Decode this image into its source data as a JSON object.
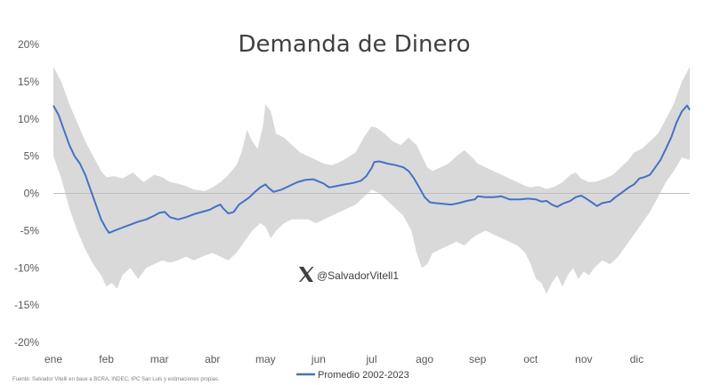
{
  "chart_data": {
    "type": "area",
    "title": "Demanda de Dinero",
    "x_ticks": [
      "ene",
      "feb",
      "mar",
      "abr",
      "may",
      "jun",
      "jul",
      "ago",
      "sep",
      "oct",
      "nov",
      "dic"
    ],
    "y_ticks": [
      "20%",
      "15%",
      "10%",
      "5%",
      "0%",
      "-5%",
      "-10%",
      "-15%",
      "-20%"
    ],
    "y_tick_values": [
      20,
      15,
      10,
      5,
      0,
      -5,
      -10,
      -15,
      -20
    ],
    "ylim": [
      -20,
      20
    ],
    "xlim": [
      0,
      12
    ],
    "grid": false,
    "legend_position": "bottom",
    "series": [
      {
        "name": "Promedio 2002-2023",
        "color": "#4472c4",
        "points": [
          [
            0.0,
            11.8
          ],
          [
            0.1,
            10.5
          ],
          [
            0.2,
            8.5
          ],
          [
            0.3,
            6.5
          ],
          [
            0.4,
            5.0
          ],
          [
            0.5,
            4.0
          ],
          [
            0.6,
            2.5
          ],
          [
            0.7,
            0.5
          ],
          [
            0.8,
            -1.5
          ],
          [
            0.9,
            -3.5
          ],
          [
            1.0,
            -4.8
          ],
          [
            1.05,
            -5.3
          ],
          [
            1.15,
            -5.0
          ],
          [
            1.3,
            -4.6
          ],
          [
            1.45,
            -4.2
          ],
          [
            1.6,
            -3.8
          ],
          [
            1.75,
            -3.5
          ],
          [
            1.9,
            -3.0
          ],
          [
            2.0,
            -2.6
          ],
          [
            2.1,
            -2.5
          ],
          [
            2.2,
            -3.2
          ],
          [
            2.35,
            -3.5
          ],
          [
            2.5,
            -3.2
          ],
          [
            2.65,
            -2.8
          ],
          [
            2.8,
            -2.5
          ],
          [
            2.95,
            -2.2
          ],
          [
            3.05,
            -1.8
          ],
          [
            3.15,
            -1.5
          ],
          [
            3.2,
            -2.0
          ],
          [
            3.3,
            -2.7
          ],
          [
            3.4,
            -2.5
          ],
          [
            3.5,
            -1.5
          ],
          [
            3.6,
            -1.0
          ],
          [
            3.7,
            -0.5
          ],
          [
            3.8,
            0.2
          ],
          [
            3.9,
            0.8
          ],
          [
            4.0,
            1.2
          ],
          [
            4.05,
            0.8
          ],
          [
            4.15,
            0.2
          ],
          [
            4.3,
            0.5
          ],
          [
            4.45,
            1.0
          ],
          [
            4.6,
            1.5
          ],
          [
            4.75,
            1.8
          ],
          [
            4.9,
            1.9
          ],
          [
            5.0,
            1.6
          ],
          [
            5.1,
            1.3
          ],
          [
            5.2,
            0.8
          ],
          [
            5.35,
            1.0
          ],
          [
            5.5,
            1.2
          ],
          [
            5.65,
            1.4
          ],
          [
            5.8,
            1.7
          ],
          [
            5.9,
            2.3
          ],
          [
            6.0,
            3.4
          ],
          [
            6.05,
            4.2
          ],
          [
            6.15,
            4.3
          ],
          [
            6.3,
            4.0
          ],
          [
            6.45,
            3.8
          ],
          [
            6.6,
            3.5
          ],
          [
            6.7,
            3.0
          ],
          [
            6.8,
            2.0
          ],
          [
            6.9,
            0.8
          ],
          [
            7.0,
            -0.5
          ],
          [
            7.1,
            -1.2
          ],
          [
            7.2,
            -1.3
          ],
          [
            7.35,
            -1.4
          ],
          [
            7.5,
            -1.5
          ],
          [
            7.65,
            -1.3
          ],
          [
            7.8,
            -1.0
          ],
          [
            7.95,
            -0.8
          ],
          [
            8.0,
            -0.4
          ],
          [
            8.15,
            -0.5
          ],
          [
            8.3,
            -0.5
          ],
          [
            8.45,
            -0.4
          ],
          [
            8.6,
            -0.8
          ],
          [
            8.8,
            -0.8
          ],
          [
            8.95,
            -0.7
          ],
          [
            9.1,
            -0.8
          ],
          [
            9.2,
            -1.1
          ],
          [
            9.3,
            -1.0
          ],
          [
            9.4,
            -1.5
          ],
          [
            9.5,
            -1.8
          ],
          [
            9.6,
            -1.4
          ],
          [
            9.75,
            -1.0
          ],
          [
            9.85,
            -0.5
          ],
          [
            9.95,
            -0.3
          ],
          [
            10.05,
            -0.7
          ],
          [
            10.15,
            -1.2
          ],
          [
            10.25,
            -1.7
          ],
          [
            10.35,
            -1.3
          ],
          [
            10.5,
            -1.1
          ],
          [
            10.6,
            -0.5
          ],
          [
            10.7,
            0.0
          ],
          [
            10.85,
            0.8
          ],
          [
            10.95,
            1.2
          ],
          [
            11.05,
            2.0
          ],
          [
            11.15,
            2.2
          ],
          [
            11.25,
            2.5
          ],
          [
            11.35,
            3.5
          ],
          [
            11.45,
            4.5
          ],
          [
            11.55,
            6.0
          ],
          [
            11.65,
            7.5
          ],
          [
            11.75,
            9.5
          ],
          [
            11.85,
            11.0
          ],
          [
            11.95,
            11.8
          ],
          [
            12.0,
            11.2
          ]
        ]
      }
    ],
    "band": {
      "color": "#d9d9d9",
      "upper": [
        [
          0.0,
          17.0
        ],
        [
          0.15,
          15.0
        ],
        [
          0.3,
          12.0
        ],
        [
          0.45,
          9.5
        ],
        [
          0.6,
          7.0
        ],
        [
          0.75,
          5.0
        ],
        [
          0.9,
          3.0
        ],
        [
          1.0,
          2.2
        ],
        [
          1.15,
          2.3
        ],
        [
          1.3,
          2.0
        ],
        [
          1.5,
          2.8
        ],
        [
          1.7,
          1.5
        ],
        [
          1.9,
          2.5
        ],
        [
          2.05,
          2.2
        ],
        [
          2.2,
          1.5
        ],
        [
          2.35,
          1.3
        ],
        [
          2.5,
          1.0
        ],
        [
          2.65,
          0.5
        ],
        [
          2.85,
          0.3
        ],
        [
          3.0,
          0.8
        ],
        [
          3.15,
          1.5
        ],
        [
          3.3,
          2.5
        ],
        [
          3.45,
          3.8
        ],
        [
          3.55,
          5.5
        ],
        [
          3.65,
          8.5
        ],
        [
          3.75,
          7.0
        ],
        [
          3.85,
          6.0
        ],
        [
          3.95,
          9.0
        ],
        [
          4.0,
          12.0
        ],
        [
          4.1,
          11.0
        ],
        [
          4.2,
          8.0
        ],
        [
          4.35,
          7.5
        ],
        [
          4.5,
          6.5
        ],
        [
          4.65,
          5.5
        ],
        [
          4.8,
          5.0
        ],
        [
          4.95,
          4.5
        ],
        [
          5.1,
          4.0
        ],
        [
          5.25,
          3.8
        ],
        [
          5.4,
          4.2
        ],
        [
          5.55,
          4.8
        ],
        [
          5.7,
          5.5
        ],
        [
          5.85,
          7.5
        ],
        [
          5.95,
          8.5
        ],
        [
          6.0,
          9.0
        ],
        [
          6.1,
          8.8
        ],
        [
          6.25,
          8.0
        ],
        [
          6.4,
          7.0
        ],
        [
          6.55,
          6.5
        ],
        [
          6.7,
          7.5
        ],
        [
          6.85,
          6.5
        ],
        [
          6.95,
          5.0
        ],
        [
          7.05,
          3.5
        ],
        [
          7.15,
          3.0
        ],
        [
          7.3,
          3.5
        ],
        [
          7.45,
          4.0
        ],
        [
          7.6,
          5.0
        ],
        [
          7.75,
          5.8
        ],
        [
          7.9,
          4.8
        ],
        [
          8.0,
          4.0
        ],
        [
          8.15,
          3.5
        ],
        [
          8.3,
          3.0
        ],
        [
          8.45,
          2.5
        ],
        [
          8.6,
          2.0
        ],
        [
          8.75,
          1.5
        ],
        [
          8.9,
          1.0
        ],
        [
          9.0,
          0.8
        ],
        [
          9.15,
          1.0
        ],
        [
          9.3,
          0.6
        ],
        [
          9.45,
          0.9
        ],
        [
          9.6,
          1.5
        ],
        [
          9.75,
          2.5
        ],
        [
          9.85,
          2.8
        ],
        [
          9.95,
          2.0
        ],
        [
          10.1,
          1.5
        ],
        [
          10.25,
          1.6
        ],
        [
          10.4,
          2.0
        ],
        [
          10.55,
          2.5
        ],
        [
          10.7,
          3.5
        ],
        [
          10.85,
          4.5
        ],
        [
          10.95,
          5.5
        ],
        [
          11.1,
          6.0
        ],
        [
          11.25,
          7.0
        ],
        [
          11.4,
          8.0
        ],
        [
          11.55,
          10.0
        ],
        [
          11.7,
          12.0
        ],
        [
          11.85,
          15.0
        ],
        [
          12.0,
          17.0
        ]
      ],
      "lower": [
        [
          0.0,
          5.0
        ],
        [
          0.15,
          2.0
        ],
        [
          0.3,
          -2.0
        ],
        [
          0.45,
          -5.0
        ],
        [
          0.6,
          -7.5
        ],
        [
          0.75,
          -9.5
        ],
        [
          0.9,
          -11.0
        ],
        [
          1.0,
          -12.5
        ],
        [
          1.1,
          -12.0
        ],
        [
          1.2,
          -12.8
        ],
        [
          1.3,
          -11.0
        ],
        [
          1.45,
          -10.0
        ],
        [
          1.6,
          -11.5
        ],
        [
          1.75,
          -10.0
        ],
        [
          1.9,
          -9.5
        ],
        [
          2.05,
          -9.0
        ],
        [
          2.2,
          -9.3
        ],
        [
          2.35,
          -9.0
        ],
        [
          2.5,
          -8.5
        ],
        [
          2.65,
          -9.0
        ],
        [
          2.8,
          -8.5
        ],
        [
          3.0,
          -8.0
        ],
        [
          3.15,
          -8.5
        ],
        [
          3.3,
          -9.0
        ],
        [
          3.45,
          -8.0
        ],
        [
          3.6,
          -6.5
        ],
        [
          3.75,
          -5.0
        ],
        [
          3.9,
          -4.0
        ],
        [
          4.0,
          -4.5
        ],
        [
          4.1,
          -6.0
        ],
        [
          4.2,
          -5.0
        ],
        [
          4.35,
          -4.0
        ],
        [
          4.5,
          -3.5
        ],
        [
          4.65,
          -3.5
        ],
        [
          4.8,
          -3.5
        ],
        [
          4.95,
          -4.0
        ],
        [
          5.1,
          -3.5
        ],
        [
          5.25,
          -3.0
        ],
        [
          5.4,
          -2.5
        ],
        [
          5.55,
          -2.0
        ],
        [
          5.7,
          -1.5
        ],
        [
          5.85,
          -0.5
        ],
        [
          6.0,
          0.5
        ],
        [
          6.15,
          0.0
        ],
        [
          6.3,
          -1.0
        ],
        [
          6.45,
          -2.0
        ],
        [
          6.6,
          -3.0
        ],
        [
          6.75,
          -5.0
        ],
        [
          6.85,
          -8.0
        ],
        [
          6.95,
          -10.0
        ],
        [
          7.05,
          -9.5
        ],
        [
          7.15,
          -8.0
        ],
        [
          7.3,
          -7.5
        ],
        [
          7.45,
          -7.0
        ],
        [
          7.6,
          -6.5
        ],
        [
          7.75,
          -7.0
        ],
        [
          7.9,
          -6.0
        ],
        [
          8.0,
          -5.5
        ],
        [
          8.15,
          -5.0
        ],
        [
          8.3,
          -5.5
        ],
        [
          8.45,
          -6.0
        ],
        [
          8.6,
          -6.5
        ],
        [
          8.75,
          -7.0
        ],
        [
          8.9,
          -8.0
        ],
        [
          9.0,
          -9.5
        ],
        [
          9.1,
          -11.5
        ],
        [
          9.2,
          -12.0
        ],
        [
          9.3,
          -13.5
        ],
        [
          9.4,
          -12.0
        ],
        [
          9.5,
          -11.0
        ],
        [
          9.6,
          -12.5
        ],
        [
          9.7,
          -11.0
        ],
        [
          9.8,
          -10.0
        ],
        [
          9.9,
          -11.5
        ],
        [
          10.0,
          -10.5
        ],
        [
          10.1,
          -11.0
        ],
        [
          10.2,
          -10.0
        ],
        [
          10.35,
          -9.0
        ],
        [
          10.5,
          -9.5
        ],
        [
          10.65,
          -8.5
        ],
        [
          10.8,
          -7.0
        ],
        [
          10.95,
          -5.5
        ],
        [
          11.1,
          -4.0
        ],
        [
          11.25,
          -2.5
        ],
        [
          11.4,
          -0.5
        ],
        [
          11.55,
          1.5
        ],
        [
          11.7,
          3.0
        ],
        [
          11.85,
          4.8
        ],
        [
          12.0,
          4.5
        ]
      ]
    },
    "legend": {
      "label": "Promedio 2002-2023"
    },
    "source": "Fuente: Salvador Vitelli en base a BCRA, INDEC, IPC San Luis y estimaciones propias.",
    "watermark": {
      "icon": "x-logo-icon",
      "handle": "@SalvadorVitell1"
    }
  }
}
